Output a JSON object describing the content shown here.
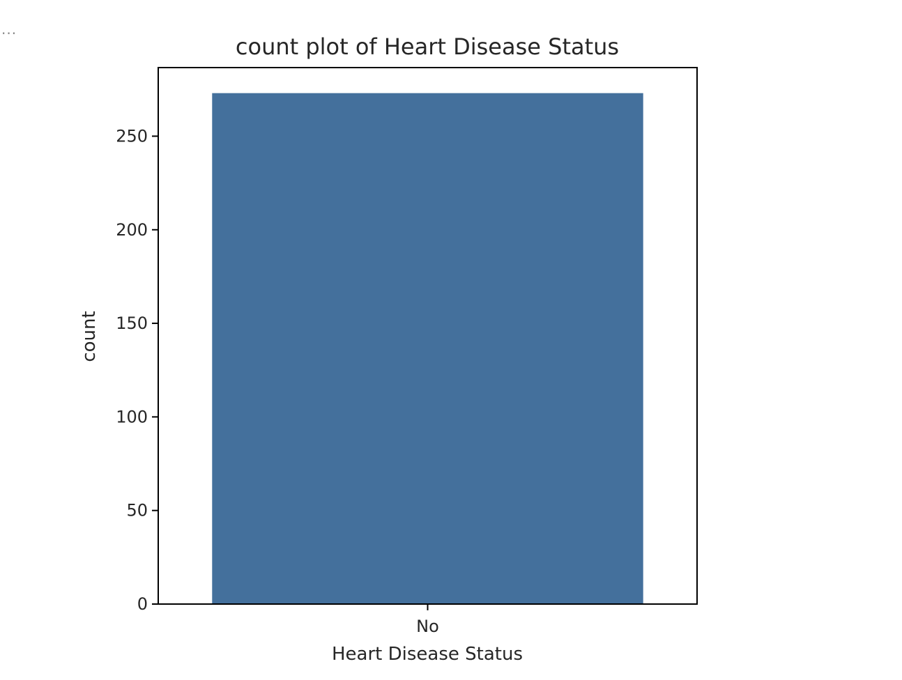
{
  "output": {
    "ellipsis": "..."
  },
  "colors": {
    "bar": "#44709c",
    "frame": "#000000",
    "text": "#262626",
    "background": "#ffffff"
  },
  "chart_data": {
    "type": "bar",
    "title": "count plot of Heart Disease Status",
    "xlabel": "Heart Disease Status",
    "ylabel": "count",
    "categories": [
      "No"
    ],
    "values": [
      273
    ],
    "ylim": [
      0,
      286.65
    ],
    "yticks": [
      0,
      50,
      100,
      150,
      200,
      250
    ],
    "grid": false,
    "legend": "none"
  }
}
